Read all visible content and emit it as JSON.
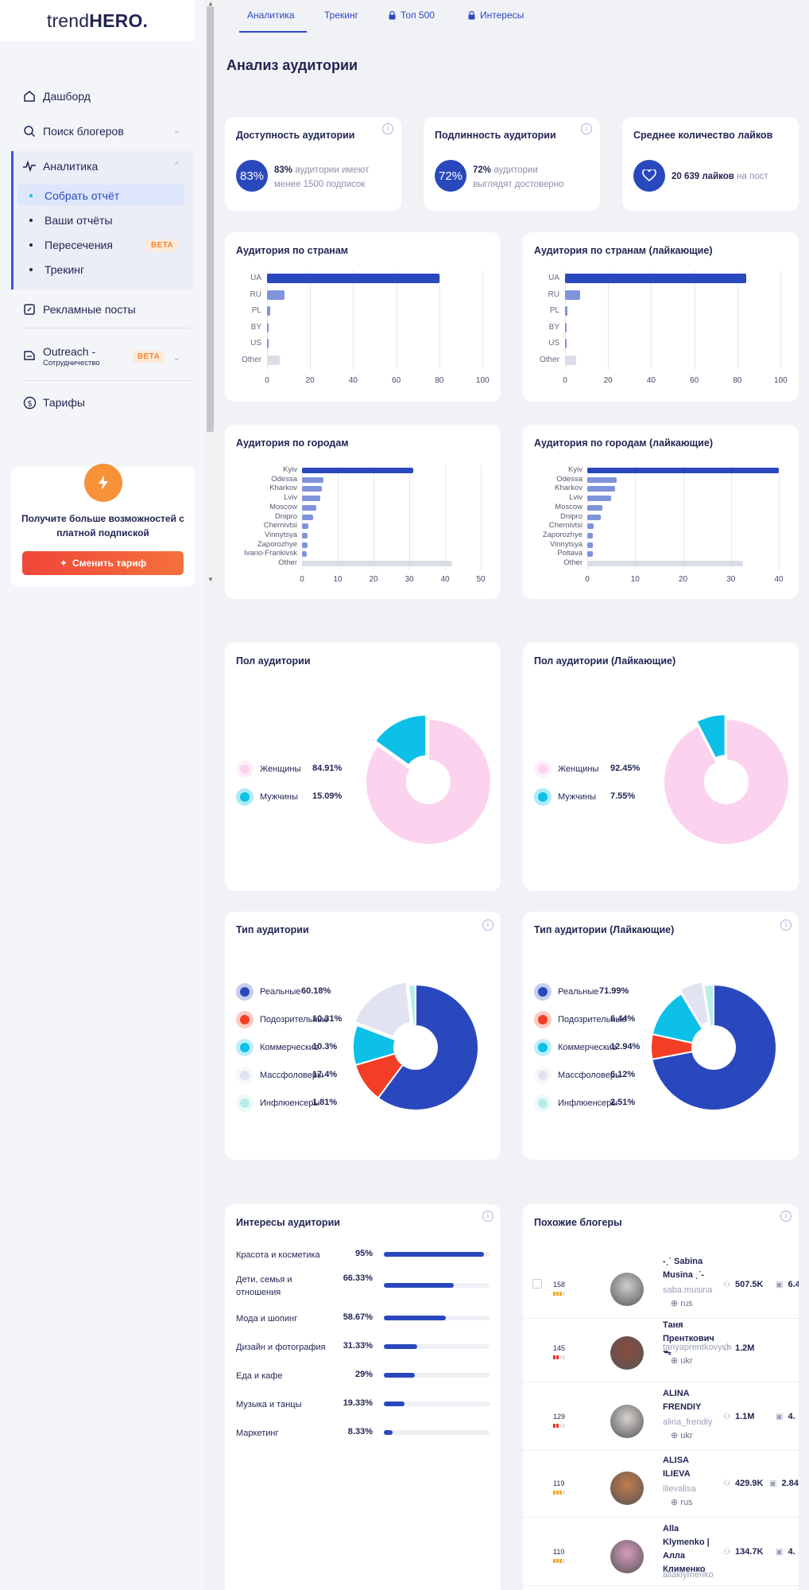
{
  "logo": {
    "light": "trend",
    "bold": "HERO."
  },
  "nav": {
    "dashboard": "Дашборд",
    "search": "Поиск блогеров",
    "analytics": "Аналитика",
    "sub": [
      "Собрать отчёт",
      "Ваши отчёты",
      "Пересечения",
      "Трекинг"
    ],
    "beta": "BETA",
    "ads": "Рекламные посты",
    "outreach": "Outreach -",
    "outreach_sub": "Сотрудничество",
    "tariffs": "Тарифы"
  },
  "promo": {
    "text": "Получите больше возможностей с платной подпиской",
    "button": "Сменить тариф"
  },
  "tabs": [
    "Аналитика",
    "Трекинг",
    "Топ 500",
    "Интересы"
  ],
  "page_title": "Анализ аудитории",
  "stats": [
    {
      "title": "Доступность аудитории",
      "circle": "83%",
      "bold": "83%",
      "text": " аудитории имеют менее 1500 подписок"
    },
    {
      "title": "Подлинность аудитории",
      "circle": "72%",
      "bold": "72%",
      "text": " аудитории выглядят достоверно"
    },
    {
      "title": "Среднее количество лайков",
      "bold": "20 639 лайков",
      "text": " на пост"
    }
  ],
  "country_charts": [
    {
      "title": "Аудитория по странам",
      "categories": [
        "UA",
        "RU",
        "PL",
        "BY",
        "US",
        "Other"
      ],
      "values": [
        80,
        8,
        1.5,
        0.8,
        0.6,
        6
      ]
    },
    {
      "title": "Аудитория по странам (лайкающие)",
      "categories": [
        "UA",
        "RU",
        "PL",
        "BY",
        "US",
        "Other"
      ],
      "values": [
        84,
        7,
        1.2,
        0.6,
        0.5,
        5
      ]
    }
  ],
  "country_ticks": [
    "0",
    "20",
    "40",
    "60",
    "80",
    "100"
  ],
  "city_charts": [
    {
      "title": "Аудитория по городам",
      "categories": [
        "Kyiv",
        "Odessa",
        "Kharkov",
        "Lviv",
        "Moscow",
        "Dnipro",
        "Chernivtsi",
        "Vinnytsya",
        "Zaporozhye",
        "Ivano-Frankivsk",
        "Other"
      ],
      "values": [
        31,
        6,
        5.5,
        5,
        4,
        3,
        1.8,
        1.6,
        1.5,
        1.4,
        42
      ],
      "ticks": [
        "0",
        "10",
        "20",
        "30",
        "40",
        "50"
      ],
      "max": 50
    },
    {
      "title": "Аудитория по городам (лайкающие)",
      "categories": [
        "Kyiv",
        "Odessa",
        "Kharkov",
        "Lviv",
        "Moscow",
        "Dnipro",
        "Chernivtsi",
        "Zaporozhye",
        "Vinnytsya",
        "Poltava",
        "Other"
      ],
      "values": [
        40,
        6.2,
        5.8,
        5,
        3.2,
        2.8,
        1.4,
        1.2,
        1.2,
        1.1,
        32.5
      ],
      "ticks": [
        "0",
        "10",
        "20",
        "30",
        "40"
      ],
      "max": 40
    }
  ],
  "gender_charts": [
    {
      "title": "Пол аудитории",
      "labels": [
        "Женщины",
        "Мужчины"
      ],
      "values": [
        "84.91%",
        "15.09%"
      ],
      "numbers": [
        84.91,
        15.09
      ]
    },
    {
      "title": "Пол аудитории (Лайкающие)",
      "labels": [
        "Женщины",
        "Мужчины"
      ],
      "values": [
        "92.45%",
        "7.55%"
      ],
      "numbers": [
        92.45,
        7.55
      ]
    }
  ],
  "type_charts": [
    {
      "title": "Тип аудитории",
      "labels": [
        "Реальные",
        "Подозрительные",
        "Коммерческие",
        "Массфоловеры",
        "Инфлюенсеры"
      ],
      "values": [
        "60.18%",
        "10.31%",
        "10.3%",
        "17.4%",
        "1.81%"
      ],
      "numbers": [
        60.18,
        10.31,
        10.3,
        17.4,
        1.81
      ]
    },
    {
      "title": "Тип аудитории (Лайкающие)",
      "labels": [
        "Реальные",
        "Подозрительные",
        "Коммерческие",
        "Массфоловеры",
        "Инфлюенсеры"
      ],
      "values": [
        "71.99%",
        "6.44%",
        "12.94%",
        "6.12%",
        "2.51%"
      ],
      "numbers": [
        71.99,
        6.44,
        12.94,
        6.12,
        2.51
      ]
    }
  ],
  "colors": {
    "primary": "#2a48bd",
    "bar_light": "#7f93dc",
    "bar_grey": "#d9dde6",
    "female": "#fcd3ee",
    "male": "#0cc0e8",
    "real": "#2a48bd",
    "suspicious": "#f23e25",
    "commercial": "#0cc0e8",
    "mass": "#e1e3f0",
    "influencer": "#b9ece8"
  },
  "interests": {
    "title": "Интересы аудитории",
    "items": [
      {
        "label": "Красота и косметика",
        "value": "95%",
        "pct": 95
      },
      {
        "label": "Дети, семья и отношения",
        "value": "66.33%",
        "pct": 66.33
      },
      {
        "label": "Мода и шопинг",
        "value": "58.67%",
        "pct": 58.67
      },
      {
        "label": "Дизайн и фотография",
        "value": "31.33%",
        "pct": 31.33
      },
      {
        "label": "Еда и кафе",
        "value": "29%",
        "pct": 29
      },
      {
        "label": "Музыка и танцы",
        "value": "19.33%",
        "pct": 19.33
      },
      {
        "label": "Маркетинг",
        "value": "8.33%",
        "pct": 8.33
      }
    ]
  },
  "similar": {
    "title": "Похожие блогеры",
    "items": [
      {
        "num": "158",
        "name": "-ˏˋ Sabina Musina ˎˊ-",
        "handle": "saba.musina",
        "geo": "rus",
        "followers": "507.5K",
        "er": "6.4"
      },
      {
        "num": "145",
        "name": "Таня Прентковичᯓ",
        "handle": "tanyaprentkovych",
        "geo": "ukr",
        "followers": "1.2M",
        "er": ""
      },
      {
        "num": "129",
        "name": "ALINA FRENDIY",
        "handle": "alina_frendiy",
        "geo": "ukr",
        "followers": "1.1M",
        "er": "4."
      },
      {
        "num": "119",
        "name": "ALISA ILIEVA",
        "handle": "ilievalisa",
        "geo": "rus",
        "followers": "429.9K",
        "er": "2.84%"
      },
      {
        "num": "110",
        "name": "Alla Klymenko | Алла Клименко",
        "handle": "allaklymenko",
        "geo": "",
        "followers": "134.7K",
        "er": "4."
      }
    ]
  }
}
